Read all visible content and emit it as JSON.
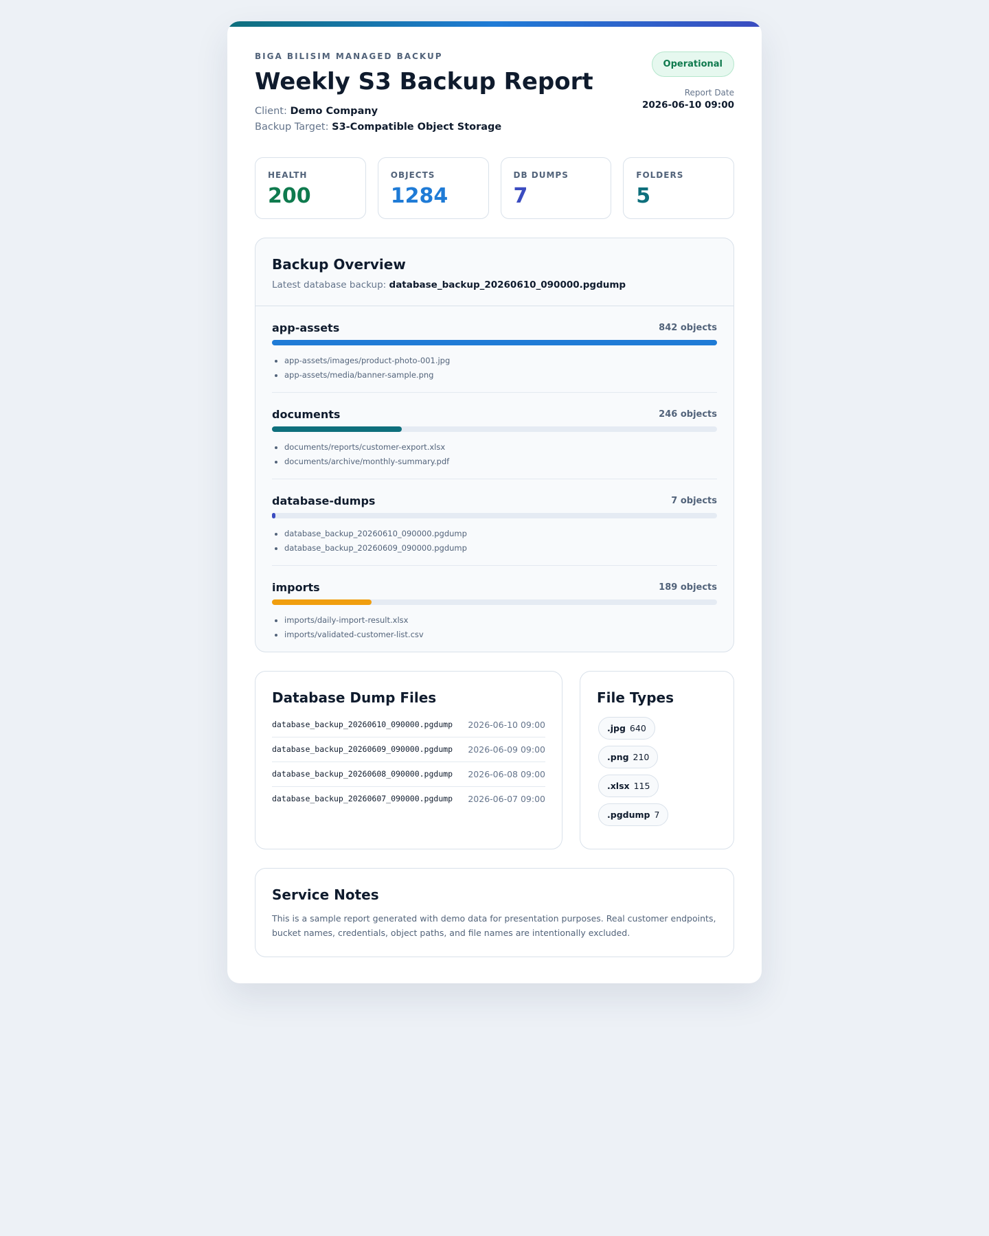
{
  "header": {
    "eyebrow": "BIGA BILISIM MANAGED BACKUP",
    "title": "Weekly S3 Backup Report",
    "client_label": "Client:",
    "client": "Demo Company",
    "target_label": "Backup Target:",
    "target": "S3-Compatible Object Storage",
    "status": "Operational",
    "date_label": "Report Date",
    "date": "2026-06-10 09:00"
  },
  "stats": [
    {
      "label": "HEALTH",
      "value": 200,
      "color": "#0f7a4e"
    },
    {
      "label": "OBJECTS",
      "value": 1284,
      "color": "#1f7bd6"
    },
    {
      "label": "DB DUMPS",
      "value": 7,
      "color": "#3b4cc0"
    },
    {
      "label": "FOLDERS",
      "value": 5,
      "color": "#0e6f7c"
    }
  ],
  "overview": {
    "title": "Backup Overview",
    "latest_label": "Latest database backup:",
    "latest": "database_backup_20260610_090000.pgdump",
    "unit": "objects",
    "folders": [
      {
        "name": "app-assets",
        "count": 842,
        "color": "#1f7bd6",
        "files": [
          "app-assets/images/product-photo-001.jpg",
          "app-assets/media/banner-sample.png"
        ]
      },
      {
        "name": "documents",
        "count": 246,
        "color": "#0e6f7c",
        "files": [
          "documents/reports/customer-export.xlsx",
          "documents/archive/monthly-summary.pdf"
        ]
      },
      {
        "name": "database-dumps",
        "count": 7,
        "color": "#3b4cc0",
        "files": [
          "database_backup_20260610_090000.pgdump",
          "database_backup_20260609_090000.pgdump"
        ]
      },
      {
        "name": "imports",
        "count": 189,
        "color": "#f09e0f",
        "files": [
          "imports/daily-import-result.xlsx",
          "imports/validated-customer-list.csv"
        ]
      }
    ]
  },
  "dumps": {
    "title": "Database Dump Files",
    "rows": [
      {
        "name": "database_backup_20260610_090000.pgdump",
        "date": "2026-06-10 09:00"
      },
      {
        "name": "database_backup_20260609_090000.pgdump",
        "date": "2026-06-09 09:00"
      },
      {
        "name": "database_backup_20260608_090000.pgdump",
        "date": "2026-06-08 09:00"
      },
      {
        "name": "database_backup_20260607_090000.pgdump",
        "date": "2026-06-07 09:00"
      }
    ]
  },
  "file_types": {
    "title": "File Types",
    "items": [
      {
        "ext": ".jpg",
        "count": 640
      },
      {
        "ext": ".png",
        "count": 210
      },
      {
        "ext": ".xlsx",
        "count": 115
      },
      {
        "ext": ".pgdump",
        "count": 7
      }
    ]
  },
  "notes": {
    "title": "Service Notes",
    "text": "This is a sample report generated with demo data for presentation purposes. Real customer endpoints, bucket names, credentials, object paths, and file names are intentionally excluded."
  }
}
